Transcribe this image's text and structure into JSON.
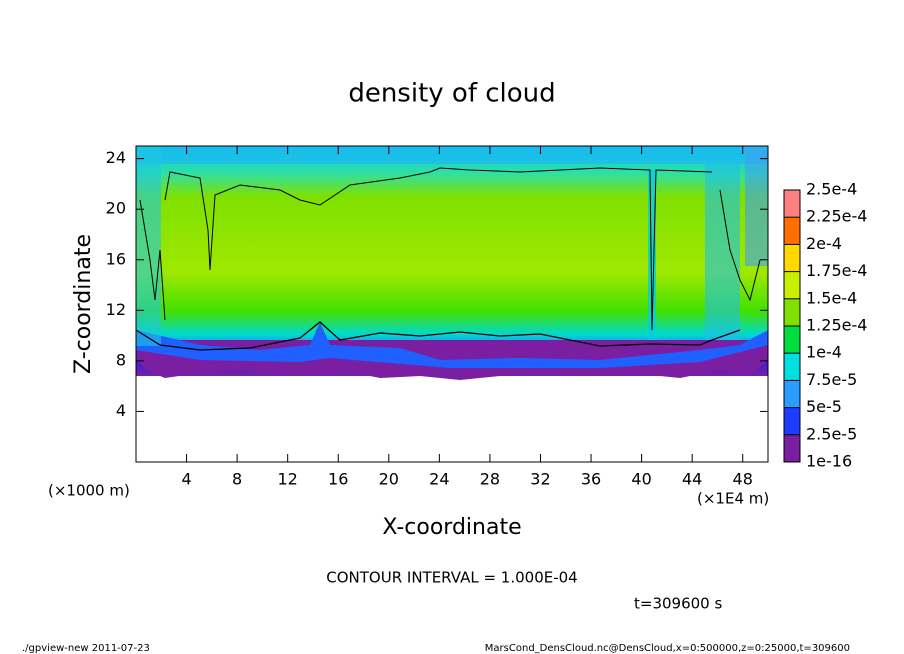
{
  "chart_data": {
    "type": "contour",
    "title": "density of cloud",
    "xlabel": "X-coordinate",
    "ylabel": "Z-coordinate",
    "x_unit": "(×1E4 m)",
    "y_unit": "(×1000 m)",
    "xlim": [
      0,
      50
    ],
    "xticks": [
      4,
      8,
      12,
      16,
      20,
      24,
      28,
      32,
      36,
      40,
      44,
      48
    ],
    "ylim": [
      0,
      25
    ],
    "yticks": [
      4,
      8,
      12,
      16,
      20,
      24
    ],
    "colorbar": {
      "levels": [
        {
          "value": 1e-16,
          "label": "1e-16"
        },
        {
          "value": 2.5e-05,
          "label": "2.5e-5"
        },
        {
          "value": 5e-05,
          "label": "5e-5"
        },
        {
          "value": 7.5e-05,
          "label": "7.5e-5"
        },
        {
          "value": 0.0001,
          "label": "1e-4"
        },
        {
          "value": 0.000125,
          "label": "1.25e-4"
        },
        {
          "value": 0.00015,
          "label": "1.5e-4"
        },
        {
          "value": 0.000175,
          "label": "1.75e-4"
        },
        {
          "value": 0.0002,
          "label": "2e-4"
        },
        {
          "value": 0.000225,
          "label": "2.25e-4"
        },
        {
          "value": 0.00025,
          "label": "2.5e-4"
        }
      ],
      "colors": [
        "#7a1fa2",
        "#1e3cff",
        "#2a9cff",
        "#00e0e0",
        "#00dd40",
        "#80e000",
        "#c8ee00",
        "#ffd800",
        "#ff7000",
        "#ff8080"
      ]
    },
    "contour_interval": "CONTOUR INTERVAL = 1.000E-04",
    "time": "t=309600 s",
    "footer_left": "./gpview-new  2011-07-23",
    "footer_right": "MarsCond_DensCloud.nc@DensCloud,x=0:500000,z=0:25000,t=309600"
  }
}
